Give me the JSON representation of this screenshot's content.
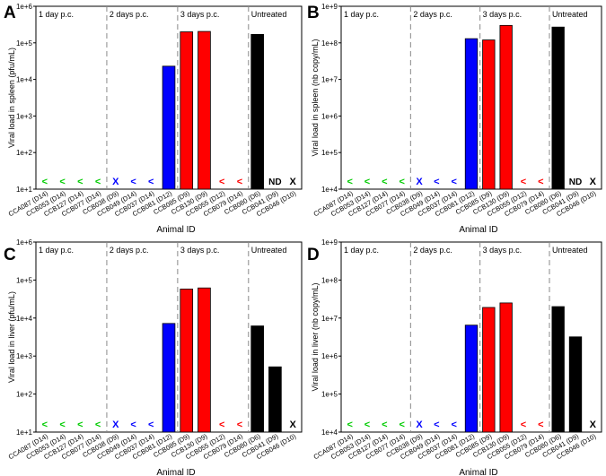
{
  "figure": {
    "x_axis_label": "Animal ID",
    "groups": [
      "1 day p.c.",
      "2 days p.c.",
      "3 days p.c.",
      "Untreated"
    ],
    "animals": [
      "CCA087 (D14)",
      "CCB053 (D14)",
      "CCB127 (D14)",
      "CCB077 (D14)",
      "CCB038 (D9)",
      "CCB049 (D14)",
      "CCB037 (D14)",
      "CCB081 (D12)",
      "CCB085 (D9)",
      "CCB130 (D9)",
      "CCB055 (D12)",
      "CCB079 (D14)",
      "CCB080 (D6)",
      "CCB041 (D9)",
      "CCB046 (D10)"
    ],
    "symbol_legend": {
      "lt": "<",
      "x": "X",
      "nd": "ND"
    }
  },
  "colors": {
    "green": "#00cc00",
    "blue": "#0000ff",
    "red": "#ff0000",
    "black": "#000000",
    "divider": "#888888"
  },
  "chart_data": [
    {
      "panel": "A",
      "type": "bar",
      "ylabel": "Viral load in spleen (pfu/mL)",
      "xlabel": "Animal ID",
      "yscale": "log",
      "ylim": [
        10,
        1000000
      ],
      "yticks": [
        {
          "v": 10,
          "base": "1e+1"
        },
        {
          "v": 100,
          "base": "1e+2"
        },
        {
          "v": 1000,
          "base": "1e+3"
        },
        {
          "v": 10000,
          "base": "1e+4"
        },
        {
          "v": 100000,
          "base": "1e+5"
        },
        {
          "v": 1000000,
          "base": "1e+6"
        }
      ],
      "values": [
        null,
        null,
        null,
        null,
        null,
        null,
        null,
        23000,
        200000,
        205000,
        null,
        null,
        170000,
        null,
        null
      ],
      "markers": [
        "<",
        "<",
        "<",
        "<",
        "X",
        "<",
        "<",
        "",
        "",
        "",
        "<",
        "<",
        "",
        "ND",
        "X"
      ],
      "colors": [
        "green",
        "green",
        "green",
        "green",
        "blue",
        "blue",
        "blue",
        "blue",
        "red",
        "red",
        "red",
        "red",
        "black",
        "black",
        "black"
      ]
    },
    {
      "panel": "B",
      "type": "bar",
      "ylabel": "Viral load in spleen (nb copy/mL)",
      "xlabel": "Animal ID",
      "yscale": "log",
      "ylim": [
        10000,
        1000000000
      ],
      "yticks": [
        {
          "v": 10000,
          "base": "1e+4"
        },
        {
          "v": 100000,
          "base": "1e+5"
        },
        {
          "v": 1000000,
          "base": "1e+6"
        },
        {
          "v": 10000000,
          "base": "1e+7"
        },
        {
          "v": 100000000,
          "base": "1e+8"
        },
        {
          "v": 1000000000,
          "base": "1e+9"
        }
      ],
      "values": [
        null,
        null,
        null,
        null,
        null,
        null,
        null,
        130000000,
        120000000,
        300000000,
        null,
        null,
        270000000,
        null,
        null
      ],
      "markers": [
        "<",
        "<",
        "<",
        "<",
        "X",
        "<",
        "<",
        "",
        "",
        "",
        "<",
        "<",
        "",
        "ND",
        "X"
      ],
      "colors": [
        "green",
        "green",
        "green",
        "green",
        "blue",
        "blue",
        "blue",
        "blue",
        "red",
        "red",
        "red",
        "red",
        "black",
        "black",
        "black"
      ]
    },
    {
      "panel": "C",
      "type": "bar",
      "ylabel": "Viral load in liver (pfu/mL)",
      "xlabel": "Animal ID",
      "yscale": "log",
      "ylim": [
        10,
        1000000
      ],
      "yticks": [
        {
          "v": 10,
          "base": "1e+1"
        },
        {
          "v": 100,
          "base": "1e+2"
        },
        {
          "v": 1000,
          "base": "1e+3"
        },
        {
          "v": 10000,
          "base": "1e+4"
        },
        {
          "v": 100000,
          "base": "1e+5"
        },
        {
          "v": 1000000,
          "base": "1e+6"
        }
      ],
      "values": [
        null,
        null,
        null,
        null,
        null,
        null,
        null,
        7200,
        58000,
        62000,
        null,
        null,
        6200,
        520,
        null
      ],
      "markers": [
        "<",
        "<",
        "<",
        "<",
        "X",
        "<",
        "<",
        "",
        "",
        "",
        "<",
        "<",
        "",
        "",
        "X"
      ],
      "colors": [
        "green",
        "green",
        "green",
        "green",
        "blue",
        "blue",
        "blue",
        "blue",
        "red",
        "red",
        "red",
        "red",
        "black",
        "black",
        "black"
      ]
    },
    {
      "panel": "D",
      "type": "bar",
      "ylabel": "Viral load in liver (nb copy/mL)",
      "xlabel": "Animal ID",
      "yscale": "log",
      "ylim": [
        10000,
        1000000000
      ],
      "yticks": [
        {
          "v": 10000,
          "base": "1e+4"
        },
        {
          "v": 100000,
          "base": "1e+5"
        },
        {
          "v": 1000000,
          "base": "1e+6"
        },
        {
          "v": 10000000,
          "base": "1e+7"
        },
        {
          "v": 100000000,
          "base": "1e+8"
        },
        {
          "v": 1000000000,
          "base": "1e+9"
        }
      ],
      "values": [
        null,
        null,
        null,
        null,
        null,
        null,
        null,
        6500000,
        19000000,
        25000000,
        null,
        null,
        20000000,
        3200000,
        null
      ],
      "markers": [
        "<",
        "<",
        "<",
        "<",
        "X",
        "<",
        "<",
        "",
        "",
        "",
        "<",
        "<",
        "",
        "",
        "X"
      ],
      "colors": [
        "green",
        "green",
        "green",
        "green",
        "blue",
        "blue",
        "blue",
        "blue",
        "red",
        "red",
        "red",
        "red",
        "black",
        "black",
        "black"
      ]
    }
  ]
}
